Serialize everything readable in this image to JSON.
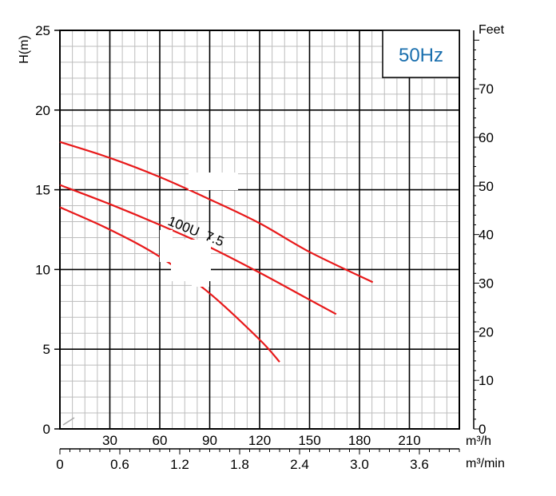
{
  "chart_data": {
    "type": "line",
    "badge": "50Hz",
    "ylabel": "H(m)",
    "y2label": "Feet",
    "xunit_primary": "m³/h",
    "xunit_secondary": "m³/min",
    "annotation": "100U  7.5",
    "grid": true,
    "ylim": [
      0,
      25
    ],
    "xlim_m3h": [
      0,
      240
    ],
    "yticks": [
      0,
      5,
      10,
      15,
      20,
      25
    ],
    "y2ticks": [
      0,
      10,
      20,
      30,
      40,
      50,
      60,
      70
    ],
    "xticks_m3h": [
      30,
      60,
      90,
      120,
      150,
      180,
      210
    ],
    "xticks_m3min": [
      "0",
      "0.6",
      "1.2",
      "1.8",
      "2.4",
      "3.0",
      "3.6"
    ],
    "series": [
      {
        "x": [
          0,
          30,
          60,
          90,
          120,
          150,
          188
        ],
        "y": [
          18.0,
          17.0,
          15.8,
          14.4,
          12.9,
          11.1,
          9.2
        ]
      },
      {
        "x": [
          0,
          30,
          60,
          90,
          120,
          150,
          166
        ],
        "y": [
          15.3,
          14.1,
          12.8,
          11.4,
          9.8,
          8.1,
          7.2
        ]
      },
      {
        "x": [
          0,
          30,
          60,
          90,
          120,
          132
        ],
        "y": [
          13.9,
          12.5,
          10.8,
          8.5,
          5.6,
          4.2
        ]
      }
    ],
    "colors": {
      "curve": "#e8191a",
      "badge_text": "#1a6fae",
      "grid": "#bdbdbd",
      "axis": "#000000"
    }
  }
}
